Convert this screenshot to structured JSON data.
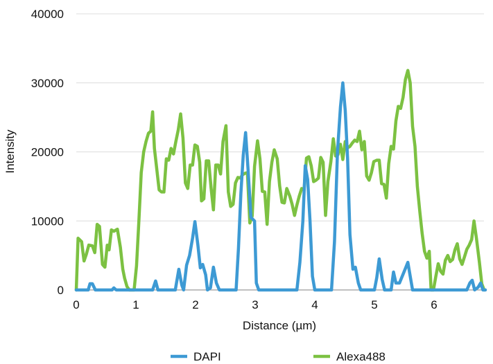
{
  "chart_data": {
    "type": "line",
    "title": "",
    "xlabel": "Distance (µm)",
    "ylabel": "Intensity",
    "xlim": [
      0,
      6.85
    ],
    "ylim": [
      0,
      40000
    ],
    "xticks": [
      "0",
      "1",
      "2",
      "3",
      "4",
      "5",
      "6"
    ],
    "yticks": [
      "0",
      "10000",
      "20000",
      "30000",
      "40000"
    ],
    "grid": "horizontal",
    "legend_position": "bottom",
    "series": [
      {
        "name": "DAPI",
        "color": "#3d9ad4",
        "points": [
          [
            0.0,
            0
          ],
          [
            0.2,
            0
          ],
          [
            0.23,
            900
          ],
          [
            0.27,
            900
          ],
          [
            0.32,
            0
          ],
          [
            0.6,
            0
          ],
          [
            0.63,
            300
          ],
          [
            0.67,
            0
          ],
          [
            1.28,
            0
          ],
          [
            1.33,
            1300
          ],
          [
            1.37,
            0
          ],
          [
            1.66,
            0
          ],
          [
            1.72,
            3000
          ],
          [
            1.77,
            700
          ],
          [
            1.8,
            0
          ],
          [
            1.85,
            3600
          ],
          [
            1.9,
            5000
          ],
          [
            1.95,
            7500
          ],
          [
            1.99,
            9900
          ],
          [
            2.04,
            6500
          ],
          [
            2.08,
            3200
          ],
          [
            2.12,
            3700
          ],
          [
            2.17,
            2200
          ],
          [
            2.2,
            0
          ],
          [
            2.25,
            300
          ],
          [
            2.3,
            3300
          ],
          [
            2.35,
            1000
          ],
          [
            2.4,
            0
          ],
          [
            2.68,
            0
          ],
          [
            2.72,
            6000
          ],
          [
            2.76,
            14000
          ],
          [
            2.8,
            19500
          ],
          [
            2.84,
            22800
          ],
          [
            2.88,
            17500
          ],
          [
            2.93,
            10500
          ],
          [
            2.99,
            10000
          ],
          [
            3.02,
            1000
          ],
          [
            3.06,
            0
          ],
          [
            3.7,
            0
          ],
          [
            3.75,
            4000
          ],
          [
            3.8,
            10000
          ],
          [
            3.84,
            18000
          ],
          [
            3.88,
            16000
          ],
          [
            3.92,
            10000
          ],
          [
            3.96,
            2000
          ],
          [
            4.0,
            0
          ],
          [
            4.28,
            0
          ],
          [
            4.33,
            7000
          ],
          [
            4.38,
            20000
          ],
          [
            4.43,
            26500
          ],
          [
            4.47,
            30000
          ],
          [
            4.51,
            26000
          ],
          [
            4.55,
            19000
          ],
          [
            4.59,
            8000
          ],
          [
            4.64,
            3000
          ],
          [
            4.68,
            3300
          ],
          [
            4.73,
            1000
          ],
          [
            4.77,
            0
          ],
          [
            5.0,
            0
          ],
          [
            5.04,
            1800
          ],
          [
            5.08,
            4500
          ],
          [
            5.13,
            1500
          ],
          [
            5.17,
            0
          ],
          [
            5.28,
            0
          ],
          [
            5.32,
            2600
          ],
          [
            5.36,
            1000
          ],
          [
            5.42,
            1000
          ],
          [
            5.5,
            2700
          ],
          [
            5.56,
            4000
          ],
          [
            5.6,
            2000
          ],
          [
            5.64,
            0
          ],
          [
            6.55,
            0
          ],
          [
            6.6,
            1000
          ],
          [
            6.64,
            1400
          ],
          [
            6.68,
            0
          ],
          [
            6.74,
            400
          ],
          [
            6.78,
            1000
          ],
          [
            6.82,
            0
          ],
          [
            6.86,
            0
          ]
        ]
      },
      {
        "name": "Alexa488",
        "color": "#7cc142",
        "points": [
          [
            0.0,
            0
          ],
          [
            0.03,
            7500
          ],
          [
            0.09,
            7000
          ],
          [
            0.13,
            4200
          ],
          [
            0.17,
            5200
          ],
          [
            0.21,
            6500
          ],
          [
            0.27,
            6400
          ],
          [
            0.31,
            5400
          ],
          [
            0.35,
            9500
          ],
          [
            0.39,
            9200
          ],
          [
            0.44,
            3700
          ],
          [
            0.48,
            3300
          ],
          [
            0.52,
            6500
          ],
          [
            0.55,
            5800
          ],
          [
            0.59,
            8700
          ],
          [
            0.63,
            8500
          ],
          [
            0.69,
            8800
          ],
          [
            0.74,
            6200
          ],
          [
            0.78,
            3000
          ],
          [
            0.81,
            1700
          ],
          [
            0.85,
            500
          ],
          [
            0.89,
            0
          ],
          [
            0.97,
            0
          ],
          [
            1.01,
            3500
          ],
          [
            1.05,
            10000
          ],
          [
            1.09,
            17000
          ],
          [
            1.13,
            20000
          ],
          [
            1.17,
            21500
          ],
          [
            1.21,
            22700
          ],
          [
            1.25,
            23000
          ],
          [
            1.28,
            25800
          ],
          [
            1.31,
            20500
          ],
          [
            1.35,
            17500
          ],
          [
            1.39,
            14500
          ],
          [
            1.43,
            14200
          ],
          [
            1.47,
            14200
          ],
          [
            1.51,
            19000
          ],
          [
            1.55,
            18800
          ],
          [
            1.59,
            20500
          ],
          [
            1.63,
            19700
          ],
          [
            1.67,
            21500
          ],
          [
            1.71,
            23200
          ],
          [
            1.75,
            25500
          ],
          [
            1.79,
            22000
          ],
          [
            1.83,
            15500
          ],
          [
            1.87,
            14700
          ],
          [
            1.91,
            18100
          ],
          [
            1.95,
            18100
          ],
          [
            1.99,
            21000
          ],
          [
            2.03,
            20800
          ],
          [
            2.07,
            18500
          ],
          [
            2.1,
            12900
          ],
          [
            2.14,
            13200
          ],
          [
            2.18,
            18700
          ],
          [
            2.22,
            18700
          ],
          [
            2.26,
            14800
          ],
          [
            2.3,
            11600
          ],
          [
            2.34,
            18100
          ],
          [
            2.38,
            18100
          ],
          [
            2.42,
            16800
          ],
          [
            2.46,
            21500
          ],
          [
            2.51,
            23800
          ],
          [
            2.55,
            14200
          ],
          [
            2.59,
            12100
          ],
          [
            2.63,
            12400
          ],
          [
            2.67,
            15500
          ],
          [
            2.71,
            16300
          ],
          [
            2.75,
            16200
          ],
          [
            2.79,
            16700
          ],
          [
            2.83,
            16900
          ],
          [
            2.87,
            17000
          ],
          [
            2.91,
            9700
          ],
          [
            2.95,
            10700
          ],
          [
            2.99,
            17900
          ],
          [
            3.04,
            21600
          ],
          [
            3.08,
            19000
          ],
          [
            3.12,
            14300
          ],
          [
            3.16,
            14200
          ],
          [
            3.2,
            9500
          ],
          [
            3.24,
            15700
          ],
          [
            3.28,
            18500
          ],
          [
            3.32,
            20300
          ],
          [
            3.37,
            19000
          ],
          [
            3.41,
            15100
          ],
          [
            3.45,
            12700
          ],
          [
            3.49,
            12600
          ],
          [
            3.53,
            14700
          ],
          [
            3.58,
            13600
          ],
          [
            3.62,
            12400
          ],
          [
            3.66,
            10800
          ],
          [
            3.7,
            12300
          ],
          [
            3.74,
            13600
          ],
          [
            3.78,
            14700
          ],
          [
            3.82,
            14500
          ],
          [
            3.86,
            19100
          ],
          [
            3.9,
            19300
          ],
          [
            3.94,
            18000
          ],
          [
            3.98,
            15700
          ],
          [
            4.02,
            15900
          ],
          [
            4.06,
            16200
          ],
          [
            4.1,
            19200
          ],
          [
            4.14,
            18500
          ],
          [
            4.18,
            10800
          ],
          [
            4.22,
            15700
          ],
          [
            4.27,
            18600
          ],
          [
            4.31,
            21900
          ],
          [
            4.35,
            19400
          ],
          [
            4.39,
            19600
          ],
          [
            4.43,
            21100
          ],
          [
            4.47,
            18900
          ],
          [
            4.51,
            21500
          ],
          [
            4.55,
            20600
          ],
          [
            4.59,
            20800
          ],
          [
            4.63,
            21300
          ],
          [
            4.67,
            21700
          ],
          [
            4.71,
            21500
          ],
          [
            4.75,
            23000
          ],
          [
            4.79,
            20300
          ],
          [
            4.83,
            21500
          ],
          [
            4.87,
            16500
          ],
          [
            4.91,
            15900
          ],
          [
            4.95,
            17000
          ],
          [
            4.99,
            18600
          ],
          [
            5.04,
            18800
          ],
          [
            5.08,
            18800
          ],
          [
            5.12,
            15400
          ],
          [
            5.16,
            15300
          ],
          [
            5.2,
            13300
          ],
          [
            5.24,
            18300
          ],
          [
            5.28,
            20800
          ],
          [
            5.32,
            20400
          ],
          [
            5.36,
            24500
          ],
          [
            5.4,
            26600
          ],
          [
            5.44,
            26300
          ],
          [
            5.48,
            27900
          ],
          [
            5.52,
            30500
          ],
          [
            5.56,
            31800
          ],
          [
            5.6,
            30000
          ],
          [
            5.64,
            23700
          ],
          [
            5.68,
            20800
          ],
          [
            5.72,
            15000
          ],
          [
            5.76,
            11400
          ],
          [
            5.8,
            8200
          ],
          [
            5.84,
            5600
          ],
          [
            5.88,
            4600
          ],
          [
            5.92,
            5600
          ],
          [
            5.95,
            0
          ],
          [
            5.99,
            0
          ],
          [
            6.03,
            2000
          ],
          [
            6.07,
            3800
          ],
          [
            6.11,
            2700
          ],
          [
            6.15,
            2300
          ],
          [
            6.19,
            4300
          ],
          [
            6.23,
            5000
          ],
          [
            6.27,
            4100
          ],
          [
            6.31,
            4400
          ],
          [
            6.35,
            5800
          ],
          [
            6.39,
            6700
          ],
          [
            6.43,
            4500
          ],
          [
            6.47,
            3700
          ],
          [
            6.51,
            4800
          ],
          [
            6.55,
            5900
          ],
          [
            6.59,
            6500
          ],
          [
            6.63,
            7300
          ],
          [
            6.67,
            10000
          ],
          [
            6.71,
            7500
          ],
          [
            6.76,
            4000
          ],
          [
            6.8,
            900
          ],
          [
            6.84,
            0
          ]
        ]
      }
    ]
  }
}
